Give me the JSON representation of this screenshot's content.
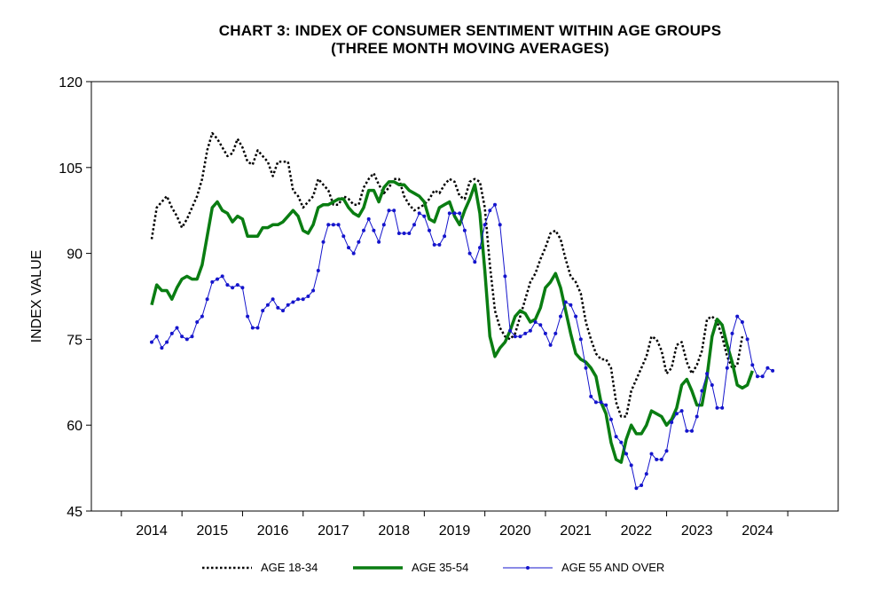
{
  "chart_data": {
    "type": "line",
    "title": "CHART 3: INDEX OF CONSUMER SENTIMENT WITHIN AGE GROUPS",
    "subtitle": "(THREE MONTH MOVING AVERAGES)",
    "xlabel": "",
    "ylabel": "INDEX VALUE",
    "ylim": [
      45,
      120
    ],
    "yticks": [
      45,
      60,
      75,
      90,
      105,
      120
    ],
    "xticks": [
      "2014",
      "2015",
      "2016",
      "2017",
      "2018",
      "2019",
      "2020",
      "2021",
      "2022",
      "2023",
      "2024"
    ],
    "x_start": 2014.0,
    "x_step": 0.0833333,
    "legend_position": "bottom",
    "series": [
      {
        "name": "AGE 18-34",
        "color": "#000000",
        "style": "dotted",
        "values": [
          92.5,
          98,
          99,
          100,
          98,
          96.5,
          94.5,
          96,
          98,
          100,
          103,
          108,
          111,
          110,
          108.5,
          107,
          107.5,
          110,
          108.5,
          106,
          105.5,
          108,
          107,
          106,
          103.5,
          106,
          106,
          106,
          101,
          100,
          98,
          99,
          100,
          103,
          102,
          101,
          98.5,
          98.5,
          100,
          99.5,
          98.5,
          98.5,
          101.5,
          103,
          104,
          102,
          100.5,
          101.5,
          103,
          103,
          100,
          98.5,
          97.5,
          98,
          98.5,
          99.5,
          101,
          100.5,
          102,
          103,
          102.5,
          100,
          99.5,
          102.5,
          103,
          102.5,
          98,
          88,
          80,
          77,
          75.5,
          75,
          76,
          79,
          82,
          85,
          86.5,
          89,
          91,
          93.5,
          94,
          92.5,
          89,
          86,
          85,
          83,
          78,
          75,
          72.5,
          71.5,
          71.5,
          70,
          64,
          61.5,
          61.5,
          66,
          68,
          70,
          72,
          75.5,
          75,
          73,
          69,
          70,
          74,
          74.5,
          71,
          69,
          70.5,
          73,
          78.5,
          79,
          78,
          75.5,
          72,
          70,
          70.5,
          75.5
        ]
      },
      {
        "name": "AGE 35-54",
        "color": "#0a7d12",
        "style": "solid",
        "values": [
          81,
          84.5,
          83.5,
          83.5,
          82,
          84,
          85.5,
          86,
          85.5,
          85.5,
          88,
          93,
          98,
          99,
          97.5,
          97,
          95.5,
          96.5,
          96,
          93,
          93,
          93,
          94.5,
          94.5,
          95,
          95,
          95.5,
          96.5,
          97.5,
          96.5,
          94,
          93.5,
          95,
          98,
          98.5,
          98.5,
          99,
          99.5,
          99.5,
          98,
          97,
          96.5,
          98,
          101,
          101,
          99,
          101.5,
          102.5,
          102.5,
          102,
          102,
          101,
          100.5,
          100,
          99,
          96,
          95.5,
          98,
          98.5,
          99,
          96.5,
          95,
          97.5,
          99.5,
          102,
          97,
          87,
          75.5,
          72,
          73.5,
          74.5,
          76.5,
          79,
          80,
          79.5,
          78,
          78.5,
          80.5,
          84,
          85,
          86.5,
          84,
          80,
          76,
          72.5,
          71.5,
          71,
          70,
          68.5,
          64,
          62,
          57,
          54,
          53.5,
          57.5,
          60,
          58.5,
          58.5,
          60,
          62.5,
          62,
          61.5,
          60,
          61,
          63,
          67,
          68,
          66,
          63.5,
          63.5,
          68.5,
          75.5,
          78.5,
          77.5,
          74,
          71,
          67,
          66.5,
          67,
          69.5
        ]
      },
      {
        "name": "AGE 55 AND OVER",
        "color": "#1414cc",
        "style": "marker",
        "values": [
          74.5,
          75.5,
          73.5,
          74.5,
          76,
          77,
          75.5,
          75,
          75.5,
          78,
          79,
          82,
          85,
          85.5,
          86,
          84.5,
          84,
          84.5,
          84,
          79,
          77,
          77,
          80,
          81,
          82,
          80.5,
          80,
          81,
          81.5,
          82,
          82,
          82.5,
          83.5,
          87,
          92,
          95,
          95,
          95,
          93,
          91,
          90,
          92,
          94,
          96,
          94,
          92,
          95,
          97.5,
          97.5,
          93.5,
          93.5,
          93.5,
          95,
          97,
          96.5,
          94,
          91.5,
          91.5,
          93,
          97,
          97,
          97,
          94,
          90,
          88.5,
          91,
          95,
          97.5,
          98.5,
          95,
          86,
          76.5,
          75.5,
          75.5,
          76,
          76.5,
          78,
          77.5,
          76,
          74,
          76,
          79,
          81.5,
          81,
          79,
          75,
          70,
          65,
          64,
          64,
          63.5,
          61,
          58,
          57,
          55,
          53,
          49,
          49.5,
          51.5,
          55,
          54,
          54,
          55.5,
          60.5,
          62,
          62.5,
          59,
          59,
          61.5,
          66,
          69,
          67,
          63,
          63,
          70,
          76,
          79,
          78,
          75,
          70.5,
          68.5,
          68.5,
          70,
          69.5
        ]
      }
    ]
  }
}
